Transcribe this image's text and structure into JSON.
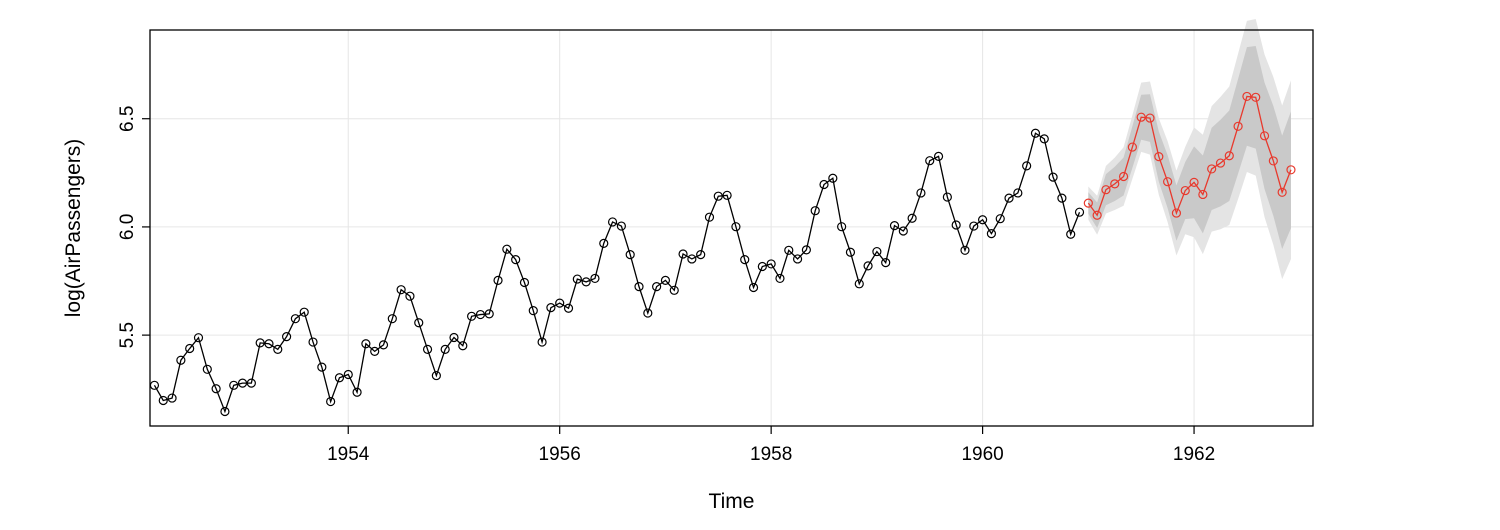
{
  "chart_data": {
    "type": "line",
    "title": "",
    "xlabel": "Time",
    "ylabel": "log(AirPassengers)",
    "xlim": [
      1952.125,
      1963.125
    ],
    "ylim": [
      5.08,
      6.91
    ],
    "x_ticks": [
      1954,
      1956,
      1958,
      1960,
      1962
    ],
    "x_tick_labels": [
      "1954",
      "1956",
      "1958",
      "1960",
      "1962"
    ],
    "y_ticks": [
      5.5,
      6.0,
      6.5
    ],
    "y_tick_labels": [
      "5.5",
      "6.0",
      "6.5"
    ],
    "grid": true,
    "colors": {
      "observed": "#000000",
      "forecast": "#e8392d",
      "band_outer": "#e4e4e4",
      "band_inner": "#c9c9c9",
      "grid": "#e6e6e6"
    },
    "observed": {
      "start": 1952.167,
      "step": 0.08333,
      "values": [
        5.268,
        5.198,
        5.209,
        5.384,
        5.438,
        5.488,
        5.342,
        5.252,
        5.147,
        5.268,
        5.278,
        5.278,
        5.464,
        5.46,
        5.434,
        5.493,
        5.576,
        5.606,
        5.468,
        5.352,
        5.193,
        5.303,
        5.318,
        5.236,
        5.46,
        5.425,
        5.455,
        5.576,
        5.71,
        5.68,
        5.557,
        5.434,
        5.313,
        5.434,
        5.489,
        5.451,
        5.587,
        5.595,
        5.598,
        5.753,
        5.897,
        5.849,
        5.743,
        5.613,
        5.468,
        5.627,
        5.648,
        5.624,
        5.759,
        5.746,
        5.762,
        5.924,
        6.023,
        6.004,
        5.872,
        5.724,
        5.602,
        5.724,
        5.753,
        5.707,
        5.875,
        5.852,
        5.872,
        6.045,
        6.142,
        6.146,
        6.001,
        5.849,
        5.72,
        5.817,
        5.829,
        5.762,
        5.892,
        5.852,
        5.894,
        6.075,
        6.196,
        6.225,
        6.001,
        5.883,
        5.737,
        5.82,
        5.886,
        5.835,
        6.006,
        5.981,
        6.04,
        6.157,
        6.306,
        6.326,
        6.138,
        6.009,
        5.892,
        6.004,
        6.033,
        5.969,
        6.038,
        6.133,
        6.157,
        6.282,
        6.433,
        6.407,
        6.23,
        6.133,
        5.966,
        6.068
      ]
    },
    "forecast": {
      "start": 1961.0,
      "step": 0.08333,
      "mean": [
        6.11,
        6.054,
        6.172,
        6.199,
        6.233,
        6.369,
        6.507,
        6.503,
        6.325,
        6.209,
        6.064,
        6.168,
        6.206,
        6.15,
        6.268,
        6.295,
        6.329,
        6.465,
        6.603,
        6.599,
        6.421,
        6.305,
        6.16,
        6.264
      ],
      "lo80": [
        6.06,
        5.995,
        6.1,
        6.12,
        6.145,
        6.273,
        6.403,
        6.393,
        6.209,
        6.087,
        5.936,
        6.036,
        6.04,
        5.97,
        6.078,
        6.095,
        6.12,
        6.246,
        6.375,
        6.362,
        6.175,
        6.051,
        5.898,
        5.994
      ],
      "hi80": [
        6.16,
        6.113,
        6.244,
        6.278,
        6.321,
        6.465,
        6.611,
        6.613,
        6.441,
        6.331,
        6.192,
        6.3,
        6.372,
        6.33,
        6.458,
        6.495,
        6.538,
        6.684,
        6.831,
        6.836,
        6.667,
        6.559,
        6.422,
        6.534
      ],
      "lo95": [
        6.033,
        5.964,
        6.062,
        6.078,
        6.098,
        6.222,
        6.347,
        6.334,
        6.148,
        6.022,
        5.868,
        5.966,
        5.952,
        5.874,
        5.978,
        5.989,
        6.009,
        6.129,
        6.254,
        6.237,
        6.045,
        5.917,
        5.759,
        5.851
      ],
      "hi95": [
        6.187,
        6.144,
        6.282,
        6.32,
        6.368,
        6.516,
        6.667,
        6.672,
        6.502,
        6.396,
        6.26,
        6.37,
        6.46,
        6.426,
        6.558,
        6.601,
        6.649,
        6.801,
        6.952,
        6.961,
        6.797,
        6.693,
        6.561,
        6.677
      ]
    }
  }
}
